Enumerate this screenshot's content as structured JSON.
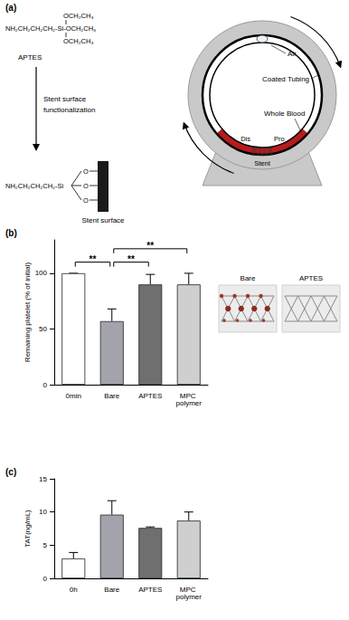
{
  "diagram": {
    "label": "(a)",
    "reagent": {
      "name": "APTES",
      "formula_top": "OCH₂CH₃",
      "formula": "NH₂CH₂CH₂CH₂-Si-OCH₂CH₃",
      "formula_bottom": "OCH₂CH₃"
    },
    "step": [
      "Stent surface",
      "functionalization"
    ],
    "product": {
      "chain": "NH₂CH₂CH₂CH₂-Si",
      "oxygens": [
        "O",
        "O",
        "O"
      ],
      "surface": "Stent surface"
    },
    "apparatus": {
      "air": "Air",
      "tubing": "Coated Tubing",
      "blood": "Whole Blood",
      "distal": "Dis",
      "proximal": "Pro",
      "stent": "Stent"
    }
  },
  "chart_data": [
    {
      "panel": "(b)",
      "type": "bar",
      "categories": [
        "0min",
        "Bare",
        "APTES",
        "MPC polymer"
      ],
      "values": [
        100,
        57,
        90,
        90
      ],
      "errors": [
        0,
        11,
        9,
        10
      ],
      "colors": [
        "#ffffff",
        "#a3a3ab",
        "#6f6f6f",
        "#cfcfcf"
      ],
      "y_label": "Remaining platelet (% of initial)",
      "ylim": [
        0,
        130
      ],
      "yticks": [
        0,
        50,
        100
      ],
      "grid": false,
      "significance": [
        {
          "from": "0min",
          "to": "Bare",
          "y": 110,
          "label": "**"
        },
        {
          "from": "Bare",
          "to": "APTES",
          "y": 110,
          "label": "**"
        },
        {
          "from": "Bare",
          "to": "MPC polymer",
          "y": 122,
          "label": "**"
        }
      ],
      "photos": [
        "Bare",
        "APTES"
      ]
    },
    {
      "panel": "(c)",
      "type": "bar",
      "categories": [
        "0h",
        "Bare",
        "APTES",
        "MPC polymer"
      ],
      "values": [
        3.0,
        9.6,
        7.6,
        8.7
      ],
      "errors": [
        0.9,
        2.1,
        0.15,
        1.3
      ],
      "colors": [
        "#ffffff",
        "#a3a3ab",
        "#6f6f6f",
        "#cfcfcf"
      ],
      "y_label": "TAT(ng/mL)",
      "ylim": [
        0,
        15
      ],
      "yticks": [
        0,
        5,
        10,
        15
      ],
      "grid": false
    }
  ]
}
